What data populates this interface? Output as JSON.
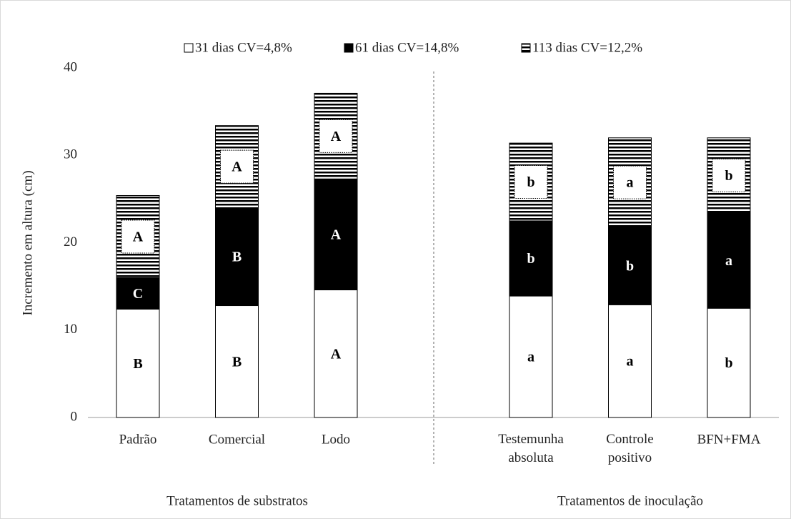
{
  "chart_data": {
    "type": "stacked-bar",
    "ylabel": "Incremento em altura (cm)",
    "categories": [
      "Padrão",
      "Comercial",
      "Lodo",
      "Testemunha absoluta",
      "Controle positivo",
      "BFN+FMA"
    ],
    "group_labels": [
      "Tratamentos de substratos",
      "Tratamentos de inoculação"
    ],
    "series": [
      {
        "name": "31 dias CV=4,8%",
        "color": "#ffffff",
        "pattern": "solid",
        "values": [
          12.4,
          12.8,
          14.6,
          13.9,
          12.9,
          12.5
        ],
        "letters": [
          "B",
          "B",
          "A",
          "a",
          "a",
          "b"
        ]
      },
      {
        "name": "61 dias CV=14,8%",
        "color": "#000000",
        "pattern": "solid",
        "values": [
          3.6,
          11.2,
          12.7,
          8.6,
          8.9,
          10.9
        ],
        "letters": [
          "C",
          "B",
          "A",
          "b",
          "b",
          "a"
        ]
      },
      {
        "name": "113 dias CV=12,2%",
        "color": "#000000",
        "pattern": "horizontal-lines",
        "values": [
          9.4,
          9.4,
          9.8,
          8.9,
          10.2,
          8.6
        ],
        "letters": [
          "A",
          "A",
          "A",
          "b",
          "a",
          "b"
        ]
      }
    ],
    "ylim": [
      0,
      40
    ],
    "yticks": [
      0,
      10,
      20,
      30,
      40
    ],
    "grid": false,
    "legend": "top"
  }
}
